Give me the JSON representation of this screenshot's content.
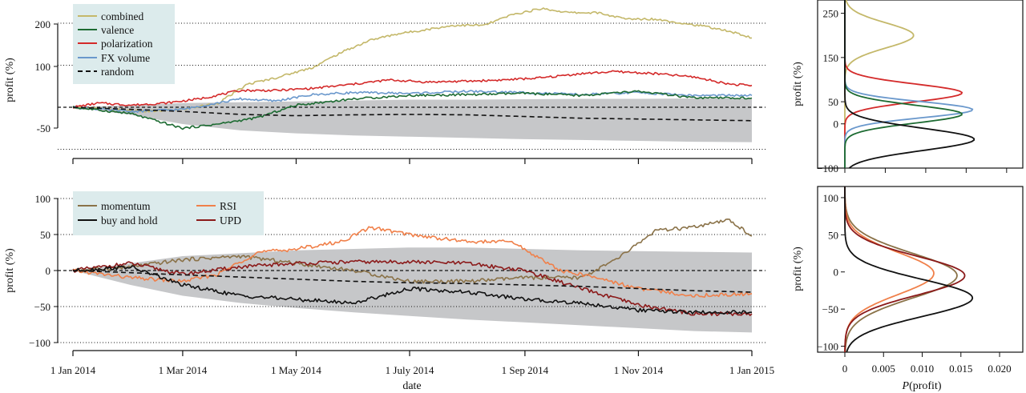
{
  "chart_data": [
    {
      "type": "line",
      "panel": "top-main",
      "xlabel": "",
      "ylabel": "profit (%)",
      "x_range": [
        "2014-01-01",
        "2015-01-01"
      ],
      "y_tick_labels": [
        "200",
        "100",
        "-50"
      ],
      "reference_lines": [
        200,
        100,
        0,
        -100
      ],
      "grid": false,
      "legend_position": "top-left",
      "band": {
        "name": "random (95% range)",
        "color": "#c6c7c9",
        "x": [
          "2014-01-01",
          "2014-02-01",
          "2014-03-01",
          "2014-04-01",
          "2014-05-01",
          "2014-06-01",
          "2014-07-01",
          "2014-08-01",
          "2014-09-01",
          "2014-10-01",
          "2014-11-01",
          "2014-12-01",
          "2015-01-01"
        ],
        "upper": [
          0,
          5,
          10,
          12,
          14,
          16,
          18,
          18,
          19,
          20,
          20,
          21,
          21
        ],
        "lower": [
          0,
          -18,
          -40,
          -55,
          -62,
          -67,
          -70,
          -73,
          -76,
          -78,
          -80,
          -82,
          -83
        ]
      },
      "series": [
        {
          "name": "combined",
          "color": "#c4b86a",
          "style": "solid",
          "x": [
            "2014-01-01",
            "2014-01-20",
            "2014-02-10",
            "2014-03-01",
            "2014-03-20",
            "2014-04-05",
            "2014-04-20",
            "2014-05-10",
            "2014-05-25",
            "2014-06-10",
            "2014-06-25",
            "2014-07-10",
            "2014-07-25",
            "2014-08-10",
            "2014-08-25",
            "2014-09-10",
            "2014-09-25",
            "2014-10-10",
            "2014-10-25",
            "2014-11-10",
            "2014-11-25",
            "2014-12-10",
            "2014-12-25",
            "2015-01-01"
          ],
          "y": [
            0,
            -5,
            -10,
            -5,
            10,
            55,
            70,
            95,
            130,
            160,
            175,
            185,
            195,
            195,
            220,
            235,
            225,
            225,
            210,
            210,
            200,
            190,
            175,
            165
          ]
        },
        {
          "name": "polarization",
          "color": "#d42a2a",
          "style": "solid",
          "x": [
            "2014-01-01",
            "2014-01-15",
            "2014-02-01",
            "2014-02-20",
            "2014-03-10",
            "2014-04-01",
            "2014-04-20",
            "2014-05-10",
            "2014-06-01",
            "2014-06-20",
            "2014-07-10",
            "2014-08-01",
            "2014-08-20",
            "2014-09-10",
            "2014-10-01",
            "2014-10-20",
            "2014-11-10",
            "2014-12-01",
            "2014-12-20",
            "2015-01-01"
          ],
          "y": [
            0,
            10,
            5,
            10,
            20,
            40,
            40,
            45,
            55,
            65,
            60,
            62,
            65,
            70,
            80,
            85,
            80,
            72,
            55,
            52
          ]
        },
        {
          "name": "FX volume",
          "color": "#6a98cc",
          "style": "solid",
          "x": [
            "2014-01-01",
            "2014-02-01",
            "2014-03-01",
            "2014-04-01",
            "2014-04-20",
            "2014-05-10",
            "2014-06-01",
            "2014-07-01",
            "2014-08-01",
            "2014-09-01",
            "2014-10-01",
            "2014-11-01",
            "2014-12-01",
            "2015-01-01"
          ],
          "y": [
            0,
            -10,
            -5,
            20,
            15,
            30,
            35,
            33,
            38,
            35,
            30,
            35,
            28,
            28
          ]
        },
        {
          "name": "valence",
          "color": "#1d6b32",
          "style": "solid",
          "x": [
            "2014-01-01",
            "2014-02-01",
            "2014-03-01",
            "2014-03-20",
            "2014-04-10",
            "2014-05-01",
            "2014-06-01",
            "2014-07-01",
            "2014-08-01",
            "2014-09-01",
            "2014-10-01",
            "2014-11-01",
            "2014-12-01",
            "2015-01-01"
          ],
          "y": [
            0,
            -15,
            -50,
            -40,
            -25,
            5,
            20,
            28,
            30,
            33,
            28,
            38,
            22,
            22
          ]
        },
        {
          "name": "random",
          "color": "#111111",
          "style": "dashed",
          "x": [
            "2014-01-01",
            "2014-02-01",
            "2014-03-01",
            "2014-04-01",
            "2014-05-01",
            "2014-06-01",
            "2014-07-01",
            "2014-08-01",
            "2014-09-01",
            "2014-10-01",
            "2014-11-01",
            "2014-12-01",
            "2015-01-01"
          ],
          "y": [
            0,
            -5,
            -10,
            -17,
            -20,
            -18,
            -17,
            -18,
            -22,
            -26,
            -28,
            -30,
            -32
          ]
        }
      ]
    },
    {
      "type": "line",
      "panel": "top-density",
      "xlabel": "",
      "ylabel": "profit (%)",
      "y_ticks": [
        250,
        150,
        50,
        0,
        -100
      ],
      "ylim": [
        -100,
        280
      ],
      "xlim": [
        0,
        0.022
      ],
      "series": [
        {
          "name": "combined",
          "color": "#c4b86a",
          "peak": 200,
          "sd": 28,
          "height": 0.0085
        },
        {
          "name": "polarization",
          "color": "#d42a2a",
          "peak": 70,
          "sd": 20,
          "height": 0.0145
        },
        {
          "name": "FX volume",
          "color": "#6a98cc",
          "peak": 32,
          "sd": 18,
          "height": 0.0158
        },
        {
          "name": "valence",
          "color": "#1d6b32",
          "peak": 22,
          "sd": 20,
          "height": 0.0145
        },
        {
          "name": "buy and hold",
          "color": "#111111",
          "peak": -35,
          "sd": 25,
          "height": 0.016
        }
      ]
    },
    {
      "type": "line",
      "panel": "bottom-main",
      "xlabel": "date",
      "ylabel": "profit (%)",
      "x_tick_labels": [
        "1 Jan 2014",
        "1 Mar 2014",
        "1 May 2014",
        "1 July 2014",
        "1 Sep 2014",
        "1 Nov 2014",
        "1 Jan 2015"
      ],
      "x_ticks": [
        "2014-01-01",
        "2014-03-01",
        "2014-05-01",
        "2014-07-01",
        "2014-09-01",
        "2014-11-01",
        "2015-01-01"
      ],
      "ylim": [
        -100,
        100
      ],
      "y_ticks": [
        100,
        50,
        0,
        -50,
        -100
      ],
      "reference_lines": [
        100,
        50,
        0,
        -50,
        -100
      ],
      "grid": false,
      "legend_position": "top-left",
      "band": {
        "name": "random (95% range)",
        "color": "#c6c7c9",
        "x": [
          "2014-01-01",
          "2014-02-01",
          "2014-03-01",
          "2014-04-01",
          "2014-05-01",
          "2014-06-01",
          "2014-07-01",
          "2014-08-01",
          "2014-09-01",
          "2014-10-01",
          "2014-11-01",
          "2014-12-01",
          "2015-01-01"
        ],
        "upper": [
          0,
          10,
          20,
          24,
          28,
          30,
          32,
          32,
          30,
          28,
          27,
          26,
          25
        ],
        "lower": [
          0,
          -20,
          -35,
          -45,
          -52,
          -58,
          -63,
          -68,
          -72,
          -76,
          -80,
          -84,
          -86
        ]
      },
      "series": [
        {
          "name": "momentum",
          "color": "#8a7248",
          "style": "solid",
          "x": [
            "2014-01-01",
            "2014-02-01",
            "2014-03-01",
            "2014-04-01",
            "2014-05-01",
            "2014-06-01",
            "2014-07-01",
            "2014-08-01",
            "2014-09-01",
            "2014-10-01",
            "2014-10-20",
            "2014-11-10",
            "2014-12-01",
            "2014-12-20",
            "2015-01-01"
          ],
          "y": [
            0,
            5,
            15,
            20,
            10,
            0,
            -15,
            -15,
            -10,
            -10,
            15,
            55,
            60,
            70,
            48
          ]
        },
        {
          "name": "RSI",
          "color": "#f0804a",
          "style": "solid",
          "x": [
            "2014-01-01",
            "2014-02-01",
            "2014-03-01",
            "2014-03-20",
            "2014-04-10",
            "2014-05-01",
            "2014-05-25",
            "2014-06-10",
            "2014-07-01",
            "2014-08-01",
            "2014-08-25",
            "2014-09-20",
            "2014-10-10",
            "2014-11-01",
            "2014-12-01",
            "2015-01-01"
          ],
          "y": [
            0,
            -10,
            -15,
            -5,
            25,
            30,
            40,
            60,
            50,
            40,
            40,
            0,
            -10,
            -25,
            -35,
            -32
          ]
        },
        {
          "name": "UPD",
          "color": "#8b1a1a",
          "style": "solid",
          "x": [
            "2014-01-01",
            "2014-02-01",
            "2014-03-01",
            "2014-04-01",
            "2014-05-01",
            "2014-06-01",
            "2014-07-01",
            "2014-08-01",
            "2014-09-01",
            "2014-10-01",
            "2014-11-01",
            "2014-12-01",
            "2015-01-01"
          ],
          "y": [
            0,
            10,
            -5,
            5,
            10,
            12,
            12,
            10,
            0,
            -25,
            -48,
            -60,
            -60
          ]
        },
        {
          "name": "buy and hold",
          "color": "#111111",
          "style": "solid",
          "x": [
            "2014-01-01",
            "2014-02-01",
            "2014-03-01",
            "2014-04-01",
            "2014-05-01",
            "2014-06-01",
            "2014-07-01",
            "2014-08-01",
            "2014-09-01",
            "2014-10-01",
            "2014-11-01",
            "2014-12-01",
            "2015-01-01"
          ],
          "y": [
            0,
            5,
            -20,
            -35,
            -40,
            -45,
            -25,
            -30,
            -40,
            -45,
            -55,
            -58,
            -58
          ]
        },
        {
          "name": "random",
          "color": "#111111",
          "style": "dashed",
          "x": [
            "2014-01-01",
            "2014-02-01",
            "2014-03-01",
            "2014-04-01",
            "2014-05-01",
            "2014-06-01",
            "2014-07-01",
            "2014-08-01",
            "2014-09-01",
            "2014-10-01",
            "2014-11-01",
            "2014-12-01",
            "2015-01-01"
          ],
          "y": [
            0,
            -3,
            -6,
            -9,
            -12,
            -15,
            -17,
            -18,
            -20,
            -22,
            -25,
            -28,
            -30
          ]
        }
      ]
    },
    {
      "type": "line",
      "panel": "bottom-density",
      "xlabel": "P(profit)",
      "ylabel": "profit (%)",
      "x_ticks": [
        0,
        0.005,
        0.01,
        0.015,
        0.02
      ],
      "x_tick_labels": [
        "0",
        "0.005",
        "0.010",
        "0.015",
        "0.020"
      ],
      "y_ticks": [
        100,
        50,
        0,
        -50,
        -100
      ],
      "ylim": [
        -108,
        115
      ],
      "xlim": [
        0,
        0.023
      ],
      "series": [
        {
          "name": "momentum",
          "color": "#8a7248",
          "peak": -5,
          "sd": 30,
          "height": 0.0145
        },
        {
          "name": "RSI",
          "color": "#f0804a",
          "peak": -2,
          "sd": 28,
          "height": 0.0115
        },
        {
          "name": "UPD",
          "color": "#8b1a1a",
          "peak": -5,
          "sd": 26,
          "height": 0.0155
        },
        {
          "name": "buy and hold",
          "color": "#111111",
          "peak": -35,
          "sd": 25,
          "height": 0.0165
        }
      ]
    }
  ],
  "legend_top": [
    "combined",
    "valence",
    "polarization",
    "FX volume",
    "random"
  ],
  "legend_bottom": [
    "momentum",
    "buy and hold",
    "RSI",
    "UPD"
  ]
}
